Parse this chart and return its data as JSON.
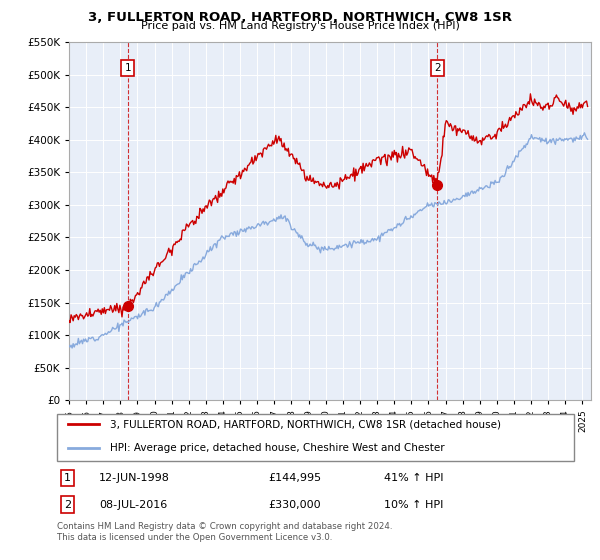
{
  "title": "3, FULLERTON ROAD, HARTFORD, NORTHWICH, CW8 1SR",
  "subtitle": "Price paid vs. HM Land Registry's House Price Index (HPI)",
  "ylim": [
    0,
    550000
  ],
  "xlim_start": 1995.0,
  "xlim_end": 2025.5,
  "sale1_date": 1998.44,
  "sale1_price": 144995,
  "sale2_date": 2016.52,
  "sale2_price": 330000,
  "legend_line1": "3, FULLERTON ROAD, HARTFORD, NORTHWICH, CW8 1SR (detached house)",
  "legend_line2": "HPI: Average price, detached house, Cheshire West and Chester",
  "table_row1": [
    "1",
    "12-JUN-1998",
    "£144,995",
    "41% ↑ HPI"
  ],
  "table_row2": [
    "2",
    "08-JUL-2016",
    "£330,000",
    "10% ↑ HPI"
  ],
  "footer1": "Contains HM Land Registry data © Crown copyright and database right 2024.",
  "footer2": "This data is licensed under the Open Government Licence v3.0.",
  "red_color": "#cc0000",
  "blue_color": "#88aadd",
  "plot_bg": "#e8eef8",
  "marker1_y": 500000,
  "marker2_y": 500000
}
